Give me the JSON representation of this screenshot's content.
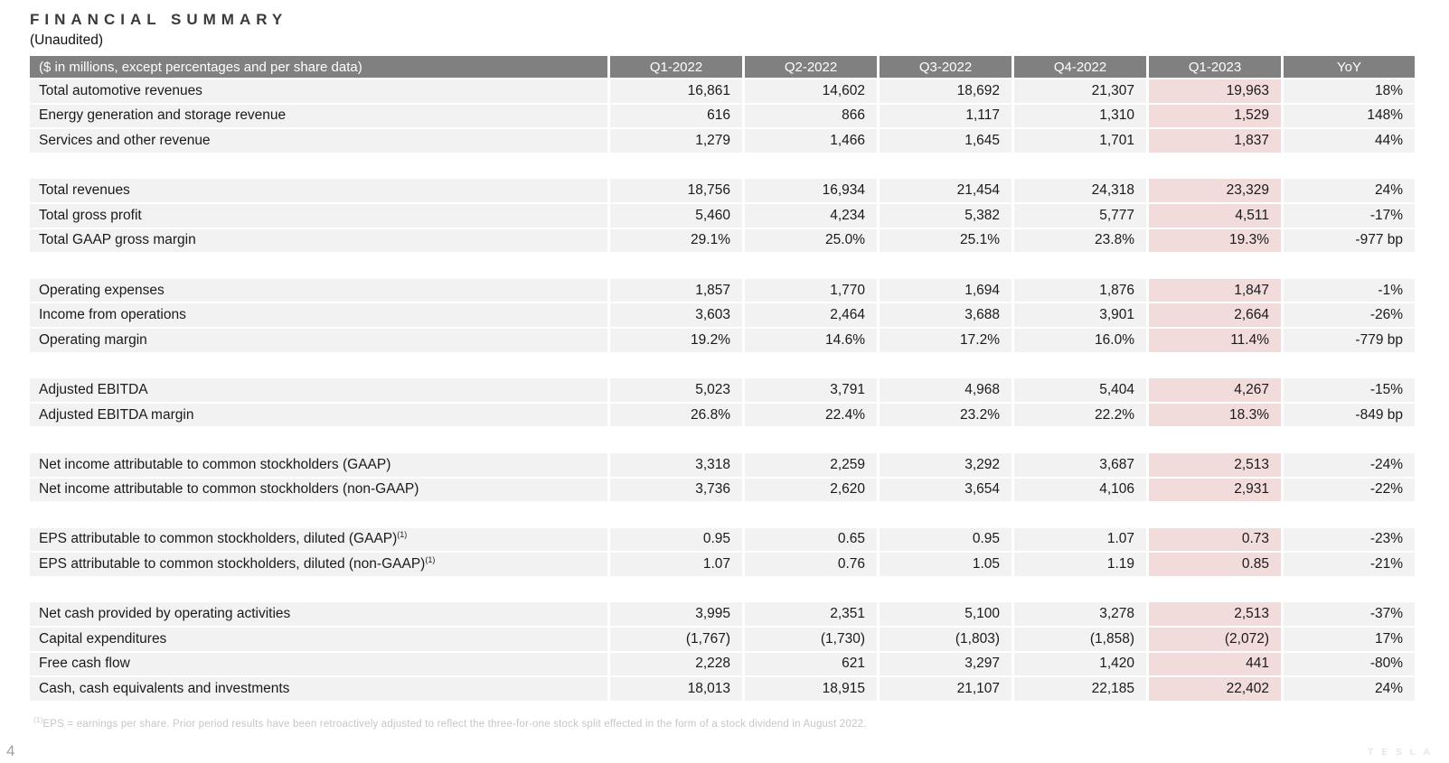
{
  "page": {
    "title": "FINANCIAL SUMMARY",
    "subtitle": "(Unaudited)",
    "page_number": "4",
    "logo_text": "TESLA",
    "footnote_marker": "(1)",
    "footnote_text": "EPS = earnings per share. Prior period results have been retroactively adjusted to reflect the three-for-one stock split effected in the form of a stock dividend in August 2022."
  },
  "colors": {
    "header_bg": "#808080",
    "header_text": "#ffffff",
    "row_bg": "#f2f2f2",
    "highlight_bg": "#f2dcdb",
    "text_color": "#1a1a1a",
    "title_color": "#3a3a3a",
    "footnote_color": "#c7c6c5",
    "muted_color": "#9f9f9f",
    "logo_color": "#e5e5e5"
  },
  "table": {
    "label_header": "($ in millions, except percentages and per share data)",
    "columns": [
      "Q1-2022",
      "Q2-2022",
      "Q3-2022",
      "Q4-2022",
      "Q1-2023",
      "YoY"
    ],
    "highlight_column": "Q1-2023",
    "rows": [
      {
        "label": "Total automotive revenues",
        "values": [
          "16,861",
          "14,602",
          "18,692",
          "21,307",
          "19,963"
        ],
        "yoy": "18%"
      },
      {
        "label": "Energy generation and storage revenue",
        "values": [
          "616",
          "866",
          "1,117",
          "1,310",
          "1,529"
        ],
        "yoy": "148%"
      },
      {
        "label": "Services and other revenue",
        "values": [
          "1,279",
          "1,466",
          "1,645",
          "1,701",
          "1,837"
        ],
        "yoy": "44%"
      },
      {
        "type": "spacer"
      },
      {
        "label": "Total revenues",
        "values": [
          "18,756",
          "16,934",
          "21,454",
          "24,318",
          "23,329"
        ],
        "yoy": "24%"
      },
      {
        "label": "Total gross profit",
        "values": [
          "5,460",
          "4,234",
          "5,382",
          "5,777",
          "4,511"
        ],
        "yoy": "-17%"
      },
      {
        "label": "Total GAAP gross margin",
        "values": [
          "29.1%",
          "25.0%",
          "25.1%",
          "23.8%",
          "19.3%"
        ],
        "yoy": "-977 bp"
      },
      {
        "type": "spacer"
      },
      {
        "label": "Operating expenses",
        "values": [
          "1,857",
          "1,770",
          "1,694",
          "1,876",
          "1,847"
        ],
        "yoy": "-1%"
      },
      {
        "label": "Income from operations",
        "values": [
          "3,603",
          "2,464",
          "3,688",
          "3,901",
          "2,664"
        ],
        "yoy": "-26%"
      },
      {
        "label": "Operating margin",
        "values": [
          "19.2%",
          "14.6%",
          "17.2%",
          "16.0%",
          "11.4%"
        ],
        "yoy": "-779 bp"
      },
      {
        "type": "spacer"
      },
      {
        "label": "Adjusted EBITDA",
        "values": [
          "5,023",
          "3,791",
          "4,968",
          "5,404",
          "4,267"
        ],
        "yoy": "-15%"
      },
      {
        "label": "Adjusted EBITDA margin",
        "values": [
          "26.8%",
          "22.4%",
          "23.2%",
          "22.2%",
          "18.3%"
        ],
        "yoy": "-849 bp"
      },
      {
        "type": "spacer"
      },
      {
        "label": "Net income attributable to common stockholders (GAAP)",
        "values": [
          "3,318",
          "2,259",
          "3,292",
          "3,687",
          "2,513"
        ],
        "yoy": "-24%"
      },
      {
        "label": "Net income attributable to common stockholders (non-GAAP)",
        "values": [
          "3,736",
          "2,620",
          "3,654",
          "4,106",
          "2,931"
        ],
        "yoy": "-22%"
      },
      {
        "type": "spacer"
      },
      {
        "label": "EPS attributable to common stockholders, diluted (GAAP)",
        "sup": "(1)",
        "values": [
          "0.95",
          "0.65",
          "0.95",
          "1.07",
          "0.73"
        ],
        "yoy": "-23%"
      },
      {
        "label": "EPS attributable to common stockholders, diluted (non-GAAP)",
        "sup": "(1)",
        "values": [
          "1.07",
          "0.76",
          "1.05",
          "1.19",
          "0.85"
        ],
        "yoy": "-21%"
      },
      {
        "type": "spacer"
      },
      {
        "label": "Net cash provided by operating activities",
        "values": [
          "3,995",
          "2,351",
          "5,100",
          "3,278",
          "2,513"
        ],
        "yoy": "-37%"
      },
      {
        "label": "Capital expenditures",
        "values": [
          "(1,767)",
          "(1,730)",
          "(1,803)",
          "(1,858)",
          "(2,072)"
        ],
        "yoy": "17%"
      },
      {
        "label": "Free cash flow",
        "values": [
          "2,228",
          "621",
          "3,297",
          "1,420",
          "441"
        ],
        "yoy": "-80%"
      },
      {
        "label": "Cash, cash equivalents and investments",
        "values": [
          "18,013",
          "18,915",
          "21,107",
          "22,185",
          "22,402"
        ],
        "yoy": "24%"
      }
    ]
  }
}
